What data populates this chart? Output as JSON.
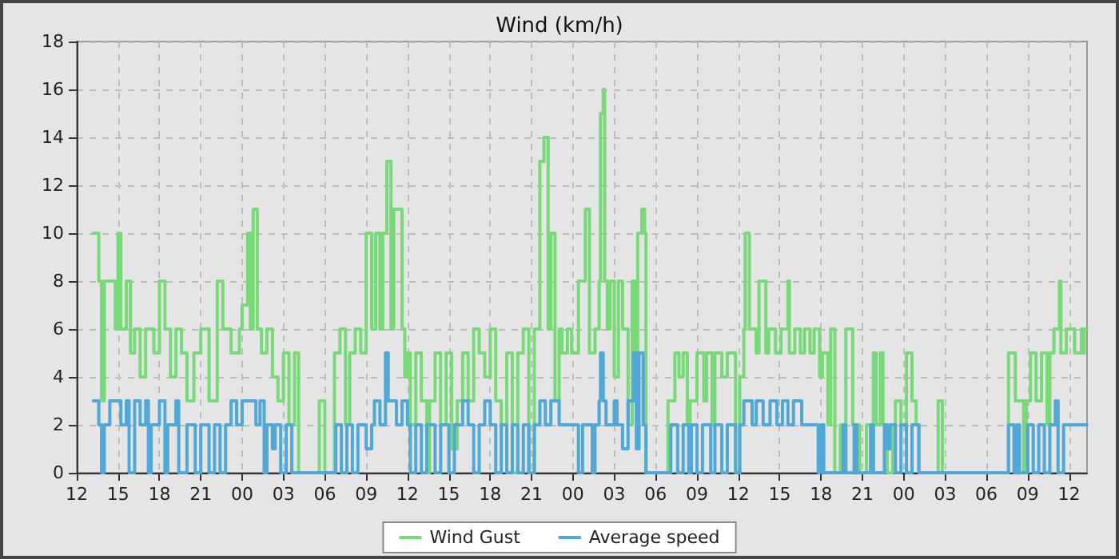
{
  "chart_data": {
    "type": "step",
    "title": "Wind (km/h)",
    "legend": "bottom",
    "grid": true,
    "line_style": "solid",
    "xlim": [
      12,
      85.3
    ],
    "xticks": [
      12,
      15,
      18,
      21,
      {
        "value": 24,
        "label": "00"
      },
      {
        "value": 27,
        "label": "03"
      },
      {
        "value": 30,
        "label": "06"
      },
      {
        "value": 33,
        "label": "09"
      },
      {
        "value": 36,
        "label": "12"
      },
      {
        "value": 39,
        "label": "15"
      },
      {
        "value": 42,
        "label": "18"
      },
      {
        "value": 45,
        "label": "21"
      },
      {
        "value": 48,
        "label": "00"
      },
      {
        "value": 51,
        "label": "03"
      },
      {
        "value": 54,
        "label": "06"
      },
      {
        "value": 57,
        "label": "09"
      },
      {
        "value": 60,
        "label": "12"
      },
      {
        "value": 63,
        "label": "15"
      },
      {
        "value": 66,
        "label": "18"
      },
      {
        "value": 69,
        "label": "21"
      },
      {
        "value": 72,
        "label": "00"
      },
      {
        "value": 75,
        "label": "03"
      },
      {
        "value": 78,
        "label": "06"
      },
      {
        "value": 81,
        "label": "09"
      },
      {
        "value": 84,
        "label": "12"
      }
    ],
    "ylim": [
      0,
      18
    ],
    "yticks": [
      0,
      2,
      4,
      6,
      8,
      10,
      12,
      14,
      16,
      18
    ],
    "series": [
      {
        "name": "Wind Gust",
        "color": "#77d977",
        "x": [
          13.2,
          13.6,
          13.8,
          14.0,
          14.8,
          15.0,
          15.2,
          15.6,
          15.9,
          16.2,
          16.6,
          17.0,
          17.6,
          18.0,
          18.4,
          18.8,
          19.2,
          19.6,
          20.0,
          20.5,
          21.0,
          21.6,
          22.2,
          22.6,
          23.2,
          23.8,
          24.0,
          24.4,
          24.6,
          24.8,
          25.0,
          25.1,
          25.4,
          25.8,
          26.2,
          26.6,
          27.0,
          27.4,
          27.8,
          28.1,
          29.6,
          30.0,
          30.7,
          31.1,
          31.5,
          31.8,
          32.2,
          32.6,
          33.0,
          33.4,
          33.7,
          34.0,
          34.2,
          34.5,
          34.8,
          35.0,
          35.6,
          35.8,
          36.0,
          36.2,
          36.6,
          37.0,
          37.4,
          37.6,
          38.0,
          38.4,
          38.8,
          39.2,
          39.6,
          40.0,
          40.4,
          40.8,
          41.2,
          41.6,
          42.0,
          42.4,
          42.8,
          43.2,
          43.6,
          44.0,
          44.4,
          44.8,
          45.2,
          45.6,
          45.9,
          46.2,
          46.4,
          46.7,
          47.0,
          47.2,
          47.6,
          47.9,
          48.4,
          48.9,
          49.2,
          49.6,
          49.9,
          50.0,
          50.2,
          50.3,
          50.5,
          50.7,
          51.0,
          51.3,
          51.6,
          52.0,
          52.3,
          52.5,
          52.7,
          53.0,
          53.2,
          53.3,
          54.9,
          55.4,
          55.7,
          56.0,
          56.3,
          56.5,
          57.0,
          57.5,
          57.7,
          58.1,
          58.3,
          58.8,
          59.2,
          59.8,
          60.1,
          60.4,
          60.5,
          60.8,
          61.3,
          61.5,
          62.0,
          62.2,
          62.7,
          63.1,
          63.6,
          63.7,
          64.1,
          64.5,
          64.8,
          65.2,
          65.5,
          65.9,
          66.1,
          66.5,
          66.7,
          67.0,
          67.4,
          67.6,
          67.8,
          68.3,
          68.8,
          69.3,
          69.6,
          69.8,
          70.0,
          70.3,
          70.5,
          70.8,
          71.2,
          71.4,
          71.8,
          72.2,
          72.6,
          72.9,
          73.1,
          74.5,
          74.8,
          79.6,
          80.1,
          80.7,
          80.9,
          81.2,
          81.6,
          82.0,
          82.4,
          82.6,
          82.9,
          83.3,
          83.4,
          83.8,
          84.4,
          84.9,
          85.0,
          85.1,
          85.3
        ],
        "values": [
          10,
          8,
          3,
          8,
          6,
          10,
          6,
          8,
          5,
          6,
          4,
          6,
          5,
          8,
          6,
          4,
          6,
          5,
          3,
          5,
          6,
          3,
          8,
          6,
          5,
          6,
          7,
          10,
          6,
          11,
          11,
          6,
          5,
          6,
          4,
          3,
          5,
          2,
          5,
          0,
          3,
          0,
          5,
          6,
          2,
          5,
          6,
          5,
          10,
          6,
          10,
          6,
          10,
          13,
          6,
          11,
          6,
          4,
          5,
          2,
          5,
          3,
          0,
          3,
          5,
          2,
          5,
          1,
          3,
          5,
          3,
          6,
          5,
          4,
          6,
          3,
          2,
          5,
          0,
          5,
          6,
          0,
          6,
          13,
          14,
          6,
          10,
          3,
          6,
          5,
          6,
          5,
          8,
          11,
          5,
          6,
          8,
          15,
          16,
          8,
          6,
          8,
          4,
          8,
          6,
          2,
          8,
          5,
          10,
          11,
          10,
          0,
          3,
          5,
          4,
          5,
          2,
          3,
          5,
          3,
          5,
          2,
          5,
          4,
          5,
          0,
          4,
          6,
          10,
          6,
          5,
          8,
          5,
          6,
          5,
          6,
          8,
          5,
          6,
          5,
          6,
          5,
          6,
          4,
          5,
          2,
          6,
          0,
          2,
          0,
          6,
          2,
          0,
          2,
          0,
          5,
          2,
          5,
          2,
          0,
          2,
          3,
          2,
          5,
          3,
          2,
          0,
          3,
          0,
          5,
          3,
          0,
          3,
          5,
          3,
          5,
          2,
          5,
          6,
          8,
          5,
          6,
          5,
          6,
          5,
          6,
          6
        ]
      },
      {
        "name": "Average speed",
        "color": "#4fa8d8",
        "x": [
          13.2,
          13.6,
          13.8,
          14.0,
          14.4,
          15.2,
          15.6,
          15.8,
          16.2,
          16.6,
          17.0,
          17.2,
          17.4,
          18.0,
          18.4,
          18.6,
          19.2,
          19.4,
          20.0,
          20.6,
          21.0,
          21.6,
          22.0,
          22.4,
          22.8,
          23.2,
          23.6,
          24.0,
          25.0,
          25.3,
          25.6,
          25.8,
          26.2,
          26.4,
          26.8,
          27.2,
          27.6,
          30.8,
          31.2,
          31.6,
          32.0,
          32.4,
          33.0,
          33.4,
          33.6,
          34.0,
          34.4,
          34.6,
          35.2,
          35.6,
          36.0,
          36.2,
          36.6,
          37.0,
          37.4,
          38.0,
          38.4,
          39.0,
          39.4,
          40.0,
          40.4,
          40.8,
          41.2,
          41.6,
          42.0,
          42.4,
          42.8,
          43.2,
          43.6,
          44.0,
          44.4,
          44.8,
          45.2,
          45.6,
          46.0,
          46.4,
          47.0,
          48.4,
          48.7,
          49.4,
          49.6,
          49.9,
          50.0,
          50.2,
          50.4,
          51.0,
          51.2,
          51.6,
          52.0,
          52.4,
          52.6,
          52.8,
          53.1,
          53.3,
          55.1,
          55.6,
          56.0,
          56.4,
          56.6,
          57.0,
          57.4,
          58.0,
          58.3,
          58.8,
          59.2,
          59.8,
          60.1,
          60.4,
          61.0,
          61.3,
          61.8,
          62.3,
          62.8,
          63.2,
          63.6,
          64.0,
          64.6,
          65.8,
          66.0,
          66.2,
          67.6,
          67.8,
          68.4,
          68.6,
          69.6,
          69.8,
          70.6,
          70.8,
          71.0,
          71.4,
          71.8,
          72.2,
          72.6,
          73.1,
          79.6,
          80.0,
          80.2,
          80.4,
          81.0,
          81.4,
          81.8,
          82.2,
          82.6,
          83.0,
          83.2,
          83.6,
          85.3
        ],
        "values": [
          3,
          2,
          0,
          2,
          3,
          2,
          3,
          0,
          3,
          2,
          3,
          0,
          2,
          3,
          0,
          2,
          3,
          0,
          2,
          0,
          2,
          0,
          2,
          0,
          2,
          3,
          2,
          3,
          2,
          3,
          0,
          2,
          1,
          2,
          0,
          2,
          0,
          2,
          0,
          2,
          0,
          2,
          1,
          2,
          3,
          2,
          5,
          3,
          2,
          3,
          2,
          0,
          2,
          0,
          2,
          0,
          2,
          0,
          2,
          3,
          2,
          0,
          2,
          3,
          2,
          0,
          2,
          0,
          2,
          0,
          2,
          0,
          2,
          3,
          2,
          3,
          2,
          0,
          2,
          0,
          2,
          3,
          5,
          3,
          2,
          3,
          2,
          1,
          3,
          5,
          1,
          5,
          2,
          0,
          2,
          0,
          2,
          0,
          2,
          0,
          2,
          0,
          2,
          0,
          2,
          0,
          2,
          3,
          2,
          3,
          2,
          3,
          2,
          3,
          2,
          3,
          2,
          0,
          2,
          0,
          2,
          0,
          2,
          0,
          2,
          0,
          2,
          1,
          2,
          0,
          2,
          0,
          2,
          0,
          2,
          0,
          2,
          0,
          2,
          0,
          2,
          0,
          2,
          3,
          0,
          2,
          2
        ]
      }
    ]
  }
}
